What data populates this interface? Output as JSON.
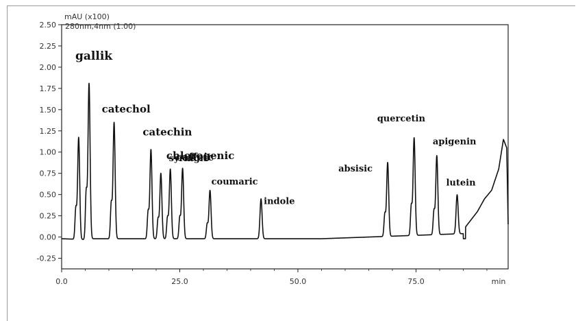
{
  "chart_data": {
    "type": "line",
    "ylabel": "mAU (x100)",
    "subtitle": "280nm,4nm (1.00)",
    "xunit": "min",
    "xlim": [
      0,
      94.5
    ],
    "ylim": [
      -0.375,
      2.5
    ],
    "x_ticks": [
      "0.0",
      "25.0",
      "50.0",
      "75.0",
      "min"
    ],
    "y_ticks": [
      "2.50",
      "2.25",
      "2.00",
      "1.75",
      "1.50",
      "1.25",
      "1.00",
      "0.75",
      "0.50",
      "0.25",
      "0.00",
      "-0.25"
    ],
    "peaks": [
      {
        "name": "",
        "x": 3.6,
        "y": 1.2
      },
      {
        "name": "gallik",
        "x": 5.8,
        "y": 1.83
      },
      {
        "name": "catechol",
        "x": 11.1,
        "y": 1.37
      },
      {
        "name": "catechin",
        "x": 18.9,
        "y": 1.05
      },
      {
        "name": "chlorogenic",
        "x": 21.0,
        "y": 0.77
      },
      {
        "name": "caffeic",
        "x": 23.0,
        "y": 0.82
      },
      {
        "name": "syringic",
        "x": 25.6,
        "y": 0.83
      },
      {
        "name": "coumaric",
        "x": 31.4,
        "y": 0.57
      },
      {
        "name": "indole",
        "x": 42.2,
        "y": 0.47
      },
      {
        "name": "absisic",
        "x": 69.0,
        "y": 0.87
      },
      {
        "name": "quercetin",
        "x": 74.6,
        "y": 1.15
      },
      {
        "name": "apigenin",
        "x": 79.4,
        "y": 0.93
      },
      {
        "name": "lutein",
        "x": 83.7,
        "y": 0.46
      }
    ],
    "baseline_rise": [
      [
        85.5,
        0.12
      ],
      [
        88,
        0.3
      ],
      [
        89.5,
        0.45
      ],
      [
        91,
        0.55
      ],
      [
        92.5,
        0.8
      ],
      [
        93.5,
        1.15
      ],
      [
        94.2,
        1.05
      ],
      [
        94.5,
        0.15
      ]
    ]
  }
}
